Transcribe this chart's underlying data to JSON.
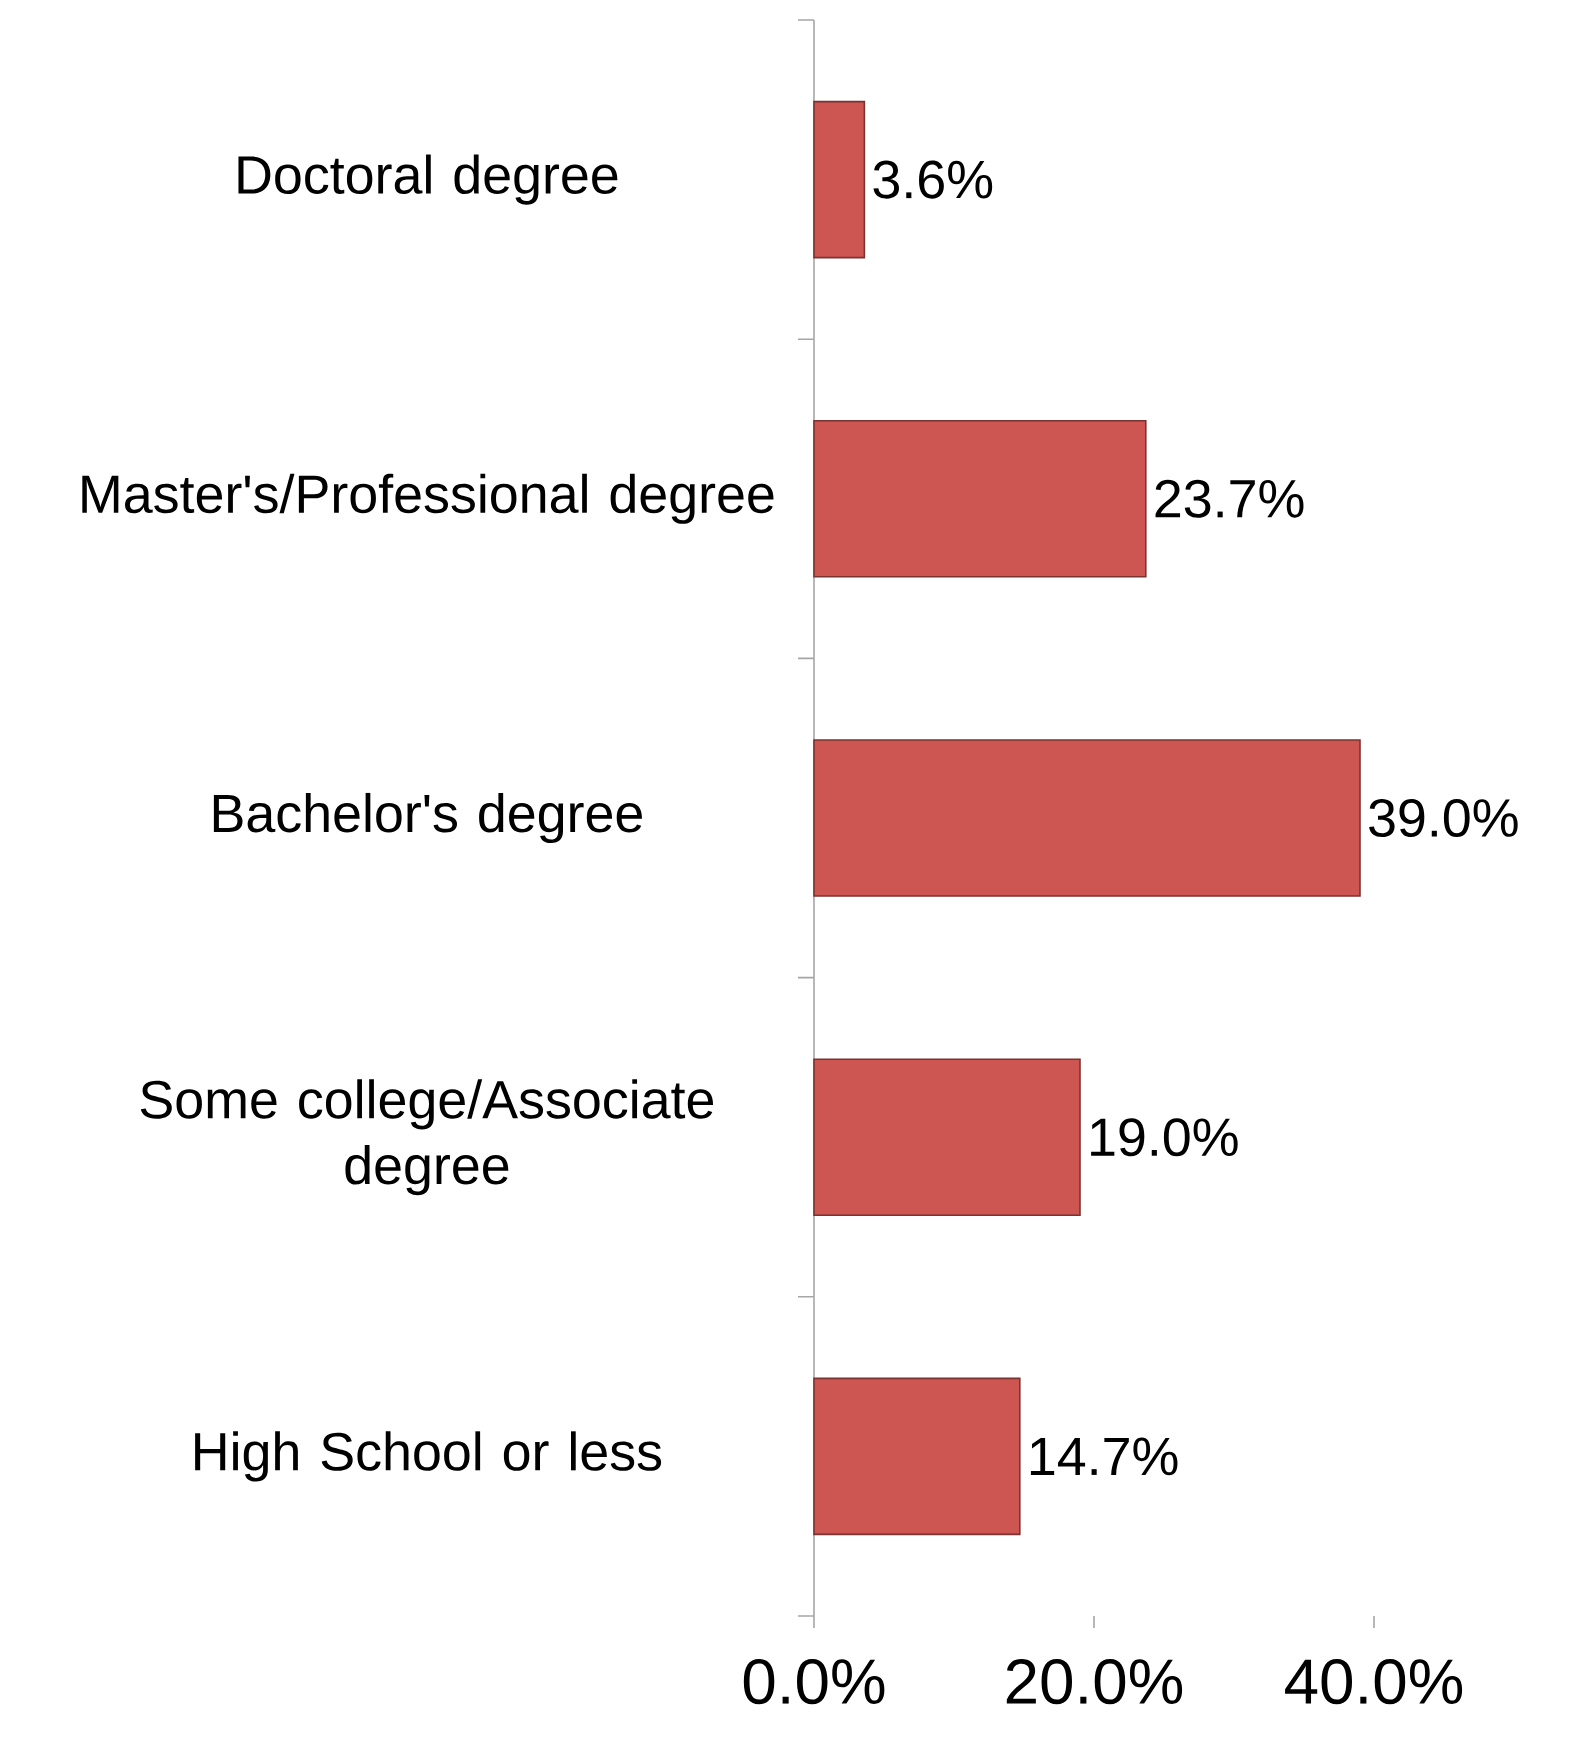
{
  "chart_data": {
    "type": "bar",
    "orientation": "horizontal",
    "categories": [
      "Doctoral degree",
      "Master's/Professional degree",
      "Bachelor's degree",
      "Some college/Associate degree",
      "High School or less"
    ],
    "values": [
      3.6,
      23.7,
      39.0,
      19.0,
      14.7
    ],
    "value_labels": [
      "3.6%",
      "23.7%",
      "39.0%",
      "19.0%",
      "14.7%"
    ],
    "color": "#cd5552",
    "xlim": [
      0,
      40
    ],
    "xticks": [
      {
        "value": 0,
        "label": "0.0%"
      },
      {
        "value": 20,
        "label": "20.0%"
      },
      {
        "value": 40,
        "label": "40.0%"
      }
    ],
    "grid": false
  }
}
